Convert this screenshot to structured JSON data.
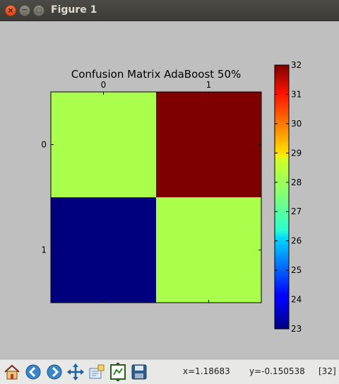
{
  "window": {
    "title": "Figure 1",
    "close_glyph": "×",
    "min_glyph": "−",
    "max_glyph": "□"
  },
  "chart_data": {
    "type": "heatmap",
    "title": "Confusion Matrix AdaBoost 50%",
    "x_ticks": [
      "0",
      "1"
    ],
    "y_ticks": [
      "0",
      "1"
    ],
    "values": [
      [
        28,
        32
      ],
      [
        23,
        28
      ]
    ],
    "colormap": "jet",
    "vmin": 23,
    "vmax": 32,
    "colorbar_ticks": [
      "23",
      "24",
      "25",
      "26",
      "27",
      "28",
      "29",
      "30",
      "31",
      "32"
    ],
    "cell_colors": [
      [
        "#aaff4d",
        "#7f0000"
      ],
      [
        "#00007f",
        "#aaff4d"
      ]
    ]
  },
  "toolbar": {
    "icons": [
      "home-icon",
      "back-icon",
      "forward-icon",
      "pan-icon",
      "zoom-icon",
      "subplots-icon",
      "save-icon"
    ]
  },
  "status": {
    "x": "x=1.18683",
    "y": "y=-0.150538",
    "value": "[32]"
  }
}
